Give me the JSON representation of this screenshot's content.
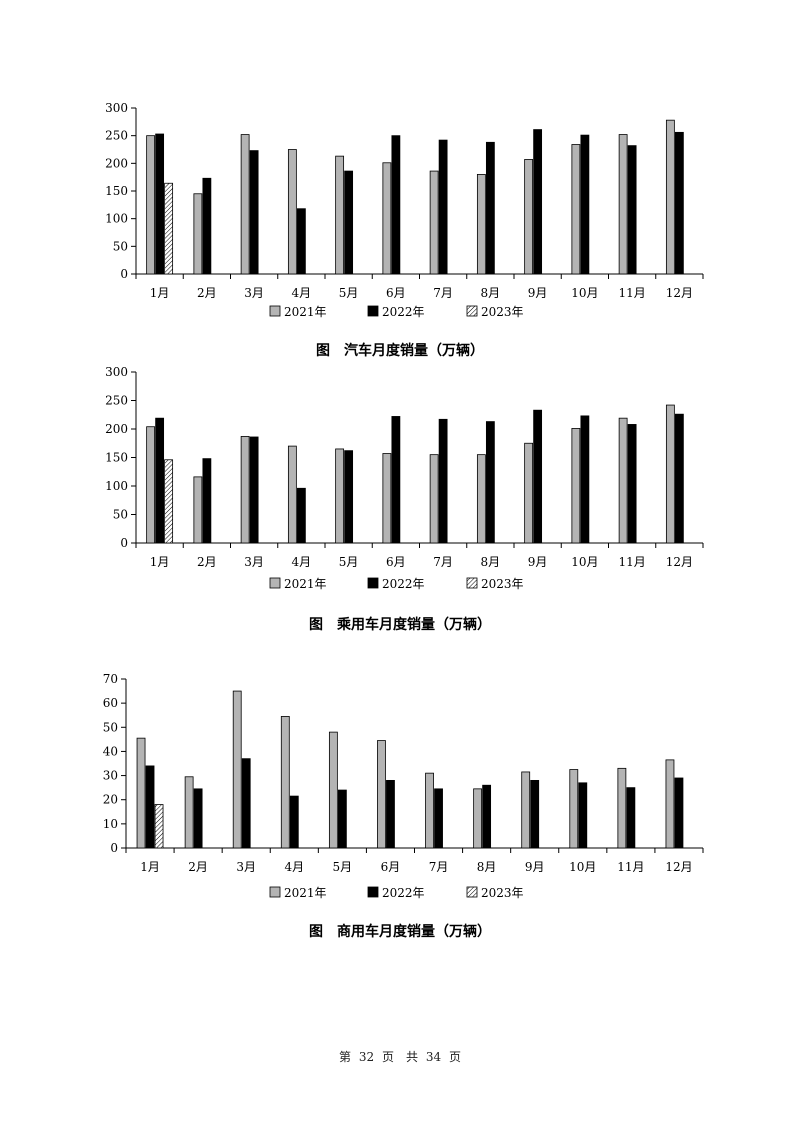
{
  "chart_data": [
    {
      "type": "bar",
      "title": "图　汽车月度销量（万辆）",
      "categories": [
        "1月",
        "2月",
        "3月",
        "4月",
        "5月",
        "6月",
        "7月",
        "8月",
        "9月",
        "10月",
        "11月",
        "12月"
      ],
      "ylim": [
        0,
        300
      ],
      "yticks": [
        0,
        50,
        100,
        150,
        200,
        250,
        300
      ],
      "legend_position": "bottom",
      "series": [
        {
          "name": "2021年",
          "values": [
            250,
            145,
            252,
            225,
            213,
            201,
            186,
            180,
            207,
            234,
            252,
            278
          ]
        },
        {
          "name": "2022年",
          "values": [
            253,
            173,
            223,
            118,
            186,
            250,
            242,
            238,
            261,
            251,
            232,
            256
          ]
        },
        {
          "name": "2023年",
          "values": [
            164,
            null,
            null,
            null,
            null,
            null,
            null,
            null,
            null,
            null,
            null,
            null
          ]
        }
      ]
    },
    {
      "type": "bar",
      "title": "图　乘用车月度销量（万辆）",
      "categories": [
        "1月",
        "2月",
        "3月",
        "4月",
        "5月",
        "6月",
        "7月",
        "8月",
        "9月",
        "10月",
        "11月",
        "12月"
      ],
      "ylim": [
        0,
        300
      ],
      "yticks": [
        0,
        50,
        100,
        150,
        200,
        250,
        300
      ],
      "legend_position": "bottom",
      "series": [
        {
          "name": "2021年",
          "values": [
            204,
            116,
            187,
            170,
            165,
            157,
            155,
            155,
            175,
            201,
            219,
            242
          ]
        },
        {
          "name": "2022年",
          "values": [
            219,
            148,
            186,
            96,
            162,
            222,
            217,
            213,
            233,
            223,
            208,
            226
          ]
        },
        {
          "name": "2023年",
          "values": [
            146,
            null,
            null,
            null,
            null,
            null,
            null,
            null,
            null,
            null,
            null,
            null
          ]
        }
      ]
    },
    {
      "type": "bar",
      "title": "图　商用车月度销量（万辆）",
      "categories": [
        "1月",
        "2月",
        "3月",
        "4月",
        "5月",
        "6月",
        "7月",
        "8月",
        "9月",
        "10月",
        "11月",
        "12月"
      ],
      "ylim": [
        0,
        70
      ],
      "yticks": [
        0,
        10,
        20,
        30,
        40,
        50,
        60,
        70
      ],
      "legend_position": "bottom",
      "series": [
        {
          "name": "2021年",
          "values": [
            45.5,
            29.5,
            65,
            54.5,
            48,
            44.5,
            31,
            24.5,
            31.5,
            32.5,
            33,
            36.5
          ]
        },
        {
          "name": "2022年",
          "values": [
            34,
            24.5,
            37,
            21.5,
            24,
            28,
            24.5,
            26,
            28,
            27,
            25,
            29
          ]
        },
        {
          "name": "2023年",
          "values": [
            18,
            null,
            null,
            null,
            null,
            null,
            null,
            null,
            null,
            null,
            null,
            null
          ]
        }
      ]
    }
  ],
  "colors": {
    "s2021": "#b4b4b4",
    "s2022": "#000000"
  },
  "footer": {
    "prefix": "第",
    "page": "32",
    "mid": "页　共",
    "total": "34",
    "suffix": "页"
  }
}
